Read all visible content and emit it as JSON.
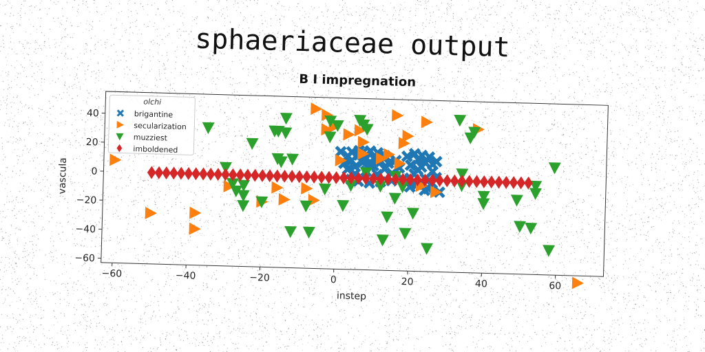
{
  "page": {
    "title": "sphaeriaceae output"
  },
  "chart_data": {
    "type": "scatter",
    "title": "B I impregnation",
    "xlabel": "instep",
    "ylabel": "vascula",
    "xlim": [
      -63,
      73
    ],
    "ylim": [
      -63,
      55
    ],
    "xticks": [
      -60,
      -40,
      -20,
      0,
      20,
      40,
      60
    ],
    "yticks": [
      -60,
      -40,
      -20,
      0,
      20,
      40
    ],
    "grid": false,
    "legend": {
      "title": "olchi",
      "position": "top-left"
    },
    "series": [
      {
        "name": "brigantine",
        "marker": "x",
        "color": "#1f77b4",
        "points": [
          [
            1,
            18
          ],
          [
            2,
            10
          ],
          [
            3,
            15
          ],
          [
            3,
            6
          ],
          [
            4,
            18
          ],
          [
            4,
            12
          ],
          [
            5,
            8
          ],
          [
            5,
            3
          ],
          [
            6,
            16
          ],
          [
            6,
            -2
          ],
          [
            7,
            11
          ],
          [
            7,
            18
          ],
          [
            8,
            5
          ],
          [
            8,
            14
          ],
          [
            9,
            19
          ],
          [
            9,
            -3
          ],
          [
            10,
            9
          ],
          [
            10,
            14
          ],
          [
            11,
            3
          ],
          [
            11,
            18
          ],
          [
            12,
            12
          ],
          [
            12,
            -2
          ],
          [
            13,
            16
          ],
          [
            13,
            7
          ],
          [
            14,
            11
          ],
          [
            15,
            4
          ],
          [
            16,
            13
          ],
          [
            17,
            8
          ],
          [
            18,
            0
          ],
          [
            19,
            16
          ],
          [
            20,
            10
          ],
          [
            20,
            -5
          ],
          [
            21,
            18
          ],
          [
            21,
            4
          ],
          [
            22,
            14
          ],
          [
            22,
            -3
          ],
          [
            23,
            9
          ],
          [
            23,
            17
          ],
          [
            24,
            1
          ],
          [
            24,
            12
          ],
          [
            25,
            -6
          ],
          [
            25,
            16
          ],
          [
            26,
            6
          ],
          [
            26,
            11
          ],
          [
            27,
            13
          ],
          [
            27,
            2
          ],
          [
            28,
            -8
          ],
          [
            26,
            -2
          ],
          [
            4,
            -1
          ],
          [
            6,
            19
          ],
          [
            9,
            9
          ],
          [
            15,
            -1
          ],
          [
            20,
            1
          ],
          [
            22,
            7
          ],
          [
            24,
            -7
          ]
        ]
      },
      {
        "name": "secularization",
        "marker": "triangle-right",
        "color": "#ff7f0e",
        "points": [
          [
            -60,
            8
          ],
          [
            -50,
            -28
          ],
          [
            -38,
            -27
          ],
          [
            -38,
            -38
          ],
          [
            -29,
            -8
          ],
          [
            -20,
            -18
          ],
          [
            -16,
            -8
          ],
          [
            -14,
            -16
          ],
          [
            -8,
            -8
          ],
          [
            -6,
            -16
          ],
          [
            -6,
            47
          ],
          [
            -3,
            43
          ],
          [
            -3,
            33
          ],
          [
            -1,
            35
          ],
          [
            1,
            12
          ],
          [
            3,
            30
          ],
          [
            6,
            33
          ],
          [
            7,
            25
          ],
          [
            7,
            17
          ],
          [
            12,
            14
          ],
          [
            14,
            17
          ],
          [
            16,
            44
          ],
          [
            17,
            11
          ],
          [
            18,
            25
          ],
          [
            19,
            30
          ],
          [
            23,
            -4
          ],
          [
            24,
            40
          ],
          [
            27,
            -8
          ],
          [
            38,
            36
          ],
          [
            66,
            -68
          ]
        ]
      },
      {
        "name": "muzziest",
        "marker": "triangle-down",
        "color": "#2ca02c",
        "points": [
          [
            -35,
            32
          ],
          [
            -30,
            5
          ],
          [
            -28,
            -6
          ],
          [
            -27,
            -11
          ],
          [
            -25,
            -7
          ],
          [
            -25,
            -21
          ],
          [
            -25,
            -14
          ],
          [
            -23,
            22
          ],
          [
            -20,
            -18
          ],
          [
            -17,
            31
          ],
          [
            -16,
            31
          ],
          [
            -16,
            12
          ],
          [
            -15,
            10
          ],
          [
            -14,
            40
          ],
          [
            -14,
            30
          ],
          [
            -12,
            12
          ],
          [
            -12,
            -38
          ],
          [
            -8,
            -20
          ],
          [
            -7,
            -38
          ],
          [
            -3,
            -8
          ],
          [
            -2,
            39
          ],
          [
            -2,
            28
          ],
          [
            0,
            36
          ],
          [
            2,
            -19
          ],
          [
            4,
            -5
          ],
          [
            6,
            40
          ],
          [
            7,
            37
          ],
          [
            8,
            34
          ],
          [
            8,
            4
          ],
          [
            12,
            -5
          ],
          [
            13,
            -42
          ],
          [
            14,
            -26
          ],
          [
            16,
            -13
          ],
          [
            16,
            2
          ],
          [
            18,
            -5
          ],
          [
            19,
            -37
          ],
          [
            21,
            -23
          ],
          [
            25,
            -47
          ],
          [
            33,
            42
          ],
          [
            34,
            -3
          ],
          [
            34,
            5
          ],
          [
            36,
            30
          ],
          [
            37,
            34
          ],
          [
            40,
            -10
          ],
          [
            40,
            -15
          ],
          [
            49,
            -12
          ],
          [
            50,
            -30
          ],
          [
            53,
            -31
          ],
          [
            54,
            -2
          ],
          [
            54,
            -7
          ],
          [
            58,
            -46
          ],
          [
            59,
            11
          ]
        ]
      },
      {
        "name": "imboldened",
        "marker": "diamond",
        "color": "#d62728",
        "points": [
          [
            -50,
            0
          ],
          [
            -48,
            0
          ],
          [
            -46,
            0
          ],
          [
            -44,
            0
          ],
          [
            -42,
            0
          ],
          [
            -40,
            0
          ],
          [
            -38,
            0
          ],
          [
            -36,
            0
          ],
          [
            -34,
            0
          ],
          [
            -32,
            0
          ],
          [
            -30,
            0
          ],
          [
            -28,
            0
          ],
          [
            -26,
            0
          ],
          [
            -24,
            0
          ],
          [
            -22,
            0
          ],
          [
            -20,
            0
          ],
          [
            -18,
            0
          ],
          [
            -16,
            0
          ],
          [
            -14,
            0
          ],
          [
            -12,
            0
          ],
          [
            -10,
            0
          ],
          [
            -8,
            0
          ],
          [
            -6,
            0
          ],
          [
            -4,
            0
          ],
          [
            -2,
            0
          ],
          [
            0,
            0
          ],
          [
            2,
            0
          ],
          [
            4,
            0
          ],
          [
            6,
            0
          ],
          [
            8,
            0
          ],
          [
            10,
            0
          ],
          [
            12,
            0
          ],
          [
            14,
            0
          ],
          [
            16,
            0
          ],
          [
            18,
            0
          ],
          [
            20,
            0
          ],
          [
            22,
            0
          ],
          [
            24,
            0
          ],
          [
            26,
            0
          ],
          [
            28,
            0
          ],
          [
            30,
            0
          ],
          [
            32,
            0
          ],
          [
            34,
            0
          ],
          [
            36,
            0
          ],
          [
            38,
            0
          ],
          [
            40,
            0
          ],
          [
            42,
            0
          ],
          [
            44,
            0
          ],
          [
            46,
            0
          ],
          [
            48,
            0
          ],
          [
            50,
            0
          ],
          [
            52,
            0
          ]
        ]
      }
    ]
  }
}
